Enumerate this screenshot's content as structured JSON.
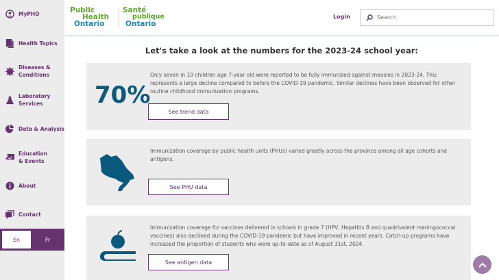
{
  "sidebar": {
    "items": [
      {
        "label": "MyPHO",
        "icon": "user-circle-icon"
      },
      {
        "label": "Health Topics",
        "icon": "documents-icon"
      },
      {
        "label": "Diseases & Conditions",
        "icon": "virus-icon"
      },
      {
        "label": "Laboratory Services",
        "icon": "flask-icon"
      },
      {
        "label": "Data & Analysis",
        "icon": "pie-chart-icon"
      },
      {
        "label": "Education & Events",
        "icon": "presentation-icon"
      },
      {
        "label": "About",
        "icon": "info-icon"
      },
      {
        "label": "Contact",
        "icon": "chat-icon"
      }
    ],
    "lang": {
      "en": "En",
      "fr": "Fr"
    }
  },
  "header": {
    "logo": {
      "en1": "Public",
      "en2": "Health",
      "en3": "Ontario",
      "fr1": "Santé",
      "fr2": "publique",
      "fr3": "Ontario"
    },
    "login": "Login",
    "search_placeholder": "Search"
  },
  "main": {
    "title": "Let's take a look at the numbers for the 2023-24 school year:",
    "cards": [
      {
        "stat": "70%",
        "text": "Only seven in 10 children age 7-year old were reported to be fully immunized against measles in 2023-24. This represents a large decline compared to before the COVID-19 pandemic. Similar declines have been observed for other routine childhood immunization programs.",
        "button": "See trend data"
      },
      {
        "icon": "ontario-map-icon",
        "text": "Immunization coverage by public health units (PHUs) varied greatly across the province among all age cohorts and antigens.",
        "button": "See PHU data"
      },
      {
        "icon": "apple-book-icon",
        "text": "Immunization coverage for vaccines delivered in schools in grade 7 (HPV, Hepatitis B and quadrivalent meningococcal vaccines) also declined during the COVID-19 pandemic but have improved in recent years. Catch-up programs have increased the proportion of students who were up-to-date as of August 31st, 2024.",
        "button": "See antigen data"
      }
    ]
  },
  "colors": {
    "brand": "#663270",
    "stat": "#0b5a7e",
    "green": "#5fa82d",
    "blue": "#1d86b5"
  }
}
